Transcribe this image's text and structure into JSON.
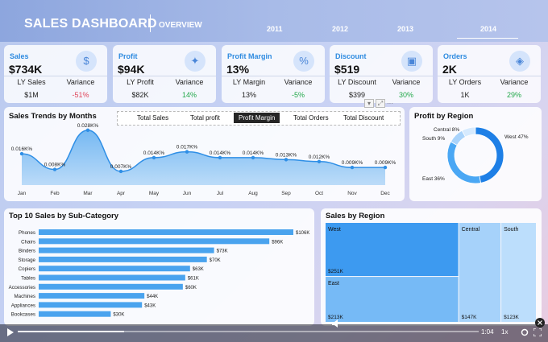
{
  "header": {
    "title": "SALES DASHBOARD",
    "subtitle": "OVERVIEW",
    "years": [
      "2011",
      "2012",
      "2013",
      "2014"
    ],
    "selected_year": "2014"
  },
  "kpis": [
    {
      "label": "Sales",
      "value": "$734K",
      "ly_label": "LY Sales",
      "ly_value": "$1M",
      "variance_label": "Variance",
      "variance_value": "-51%",
      "variance_color": "#e0455a",
      "icon": "sales-icon"
    },
    {
      "label": "Profit",
      "value": "$94K",
      "ly_label": "LY Profit",
      "ly_value": "$82K",
      "variance_label": "Variance",
      "variance_value": "14%",
      "variance_color": "#22a84a",
      "icon": "profit-icon"
    },
    {
      "label": "Profit Margin",
      "value": "13%",
      "ly_label": "LY Margin",
      "ly_value": "13%",
      "variance_label": "Variance",
      "variance_value": "-5%",
      "variance_color": "#22a84a",
      "icon": "margin-icon"
    },
    {
      "label": "Discount",
      "value": "$519",
      "ly_label": "LY Discount",
      "ly_value": "$399",
      "variance_label": "Variance",
      "variance_value": "30%",
      "variance_color": "#22a84a",
      "icon": "discount-icon"
    },
    {
      "label": "Orders",
      "value": "2K",
      "ly_label": "LY Orders",
      "ly_value": "1K",
      "variance_label": "Variance",
      "variance_value": "29%",
      "variance_color": "#22a84a",
      "icon": "orders-icon"
    }
  ],
  "tabs": [
    "Total Sales",
    "Total profit",
    "Profit Margin",
    "Total Orders",
    "Total Discount"
  ],
  "active_tab": "Profit Margin",
  "cards": {
    "trend_title": "Sales Trends by Months",
    "region_donut_title": "Profit by Region",
    "subcat_title": "Top 10 Sales by Sub-Category",
    "treemap_title": "Sales by Region"
  },
  "video": {
    "time": "1:04",
    "speed": "1x",
    "progress": 0.23
  },
  "chart_data": [
    {
      "type": "area",
      "title": "Sales Trends by Months",
      "x": [
        "Jan",
        "Feb",
        "Mar",
        "Apr",
        "May",
        "Jun",
        "Jul",
        "Aug",
        "Sep",
        "Oct",
        "Nov",
        "Dec"
      ],
      "values": [
        0.016,
        0.008,
        0.028,
        0.007,
        0.014,
        0.017,
        0.014,
        0.014,
        0.013,
        0.012,
        0.009,
        0.009
      ],
      "labels": [
        "0.016K%",
        "0.008K%",
        "0.028K%",
        "0.007K%",
        "0.014K%",
        "0.017K%",
        "0.014K%",
        "0.014K%",
        "0.013K%",
        "0.012K%",
        "0.009K%",
        "0.009K%"
      ],
      "ylim": [
        0,
        0.03
      ],
      "color": "#4aa3ee"
    },
    {
      "type": "pie",
      "title": "Profit by Region",
      "categories": [
        "West",
        "East",
        "South",
        "Central"
      ],
      "values": [
        47,
        36,
        9,
        8
      ],
      "labels": [
        "West 47%",
        "East 36%",
        "South 9%",
        "Central 8%"
      ],
      "colors": [
        "#1e7fe6",
        "#4aa7f4",
        "#a9d3fb",
        "#d6eafe"
      ]
    },
    {
      "type": "bar",
      "title": "Top 10 Sales by Sub-Category",
      "categories": [
        "Phones",
        "Chairs",
        "Binders",
        "Storage",
        "Copiers",
        "Tables",
        "Accessories",
        "Machines",
        "Appliances",
        "Bookcases"
      ],
      "values": [
        106,
        96,
        73,
        70,
        63,
        61,
        60,
        44,
        43,
        30
      ],
      "labels": [
        "$106K",
        "$96K",
        "$73K",
        "$70K",
        "$63K",
        "$61K",
        "$60K",
        "$44K",
        "$43K",
        "$30K"
      ],
      "xlim": [
        0,
        106
      ],
      "color": "#4aa3ee"
    },
    {
      "type": "heatmap",
      "title": "Sales by Region",
      "categories": [
        "West",
        "East",
        "Central",
        "South"
      ],
      "values": [
        251,
        213,
        147,
        123
      ],
      "labels": [
        "$251K",
        "$213K",
        "$147K",
        "$123K"
      ],
      "colors": [
        "#3d9af0",
        "#76baf6",
        "#a6d2fa",
        "#bcdefc"
      ]
    }
  ]
}
